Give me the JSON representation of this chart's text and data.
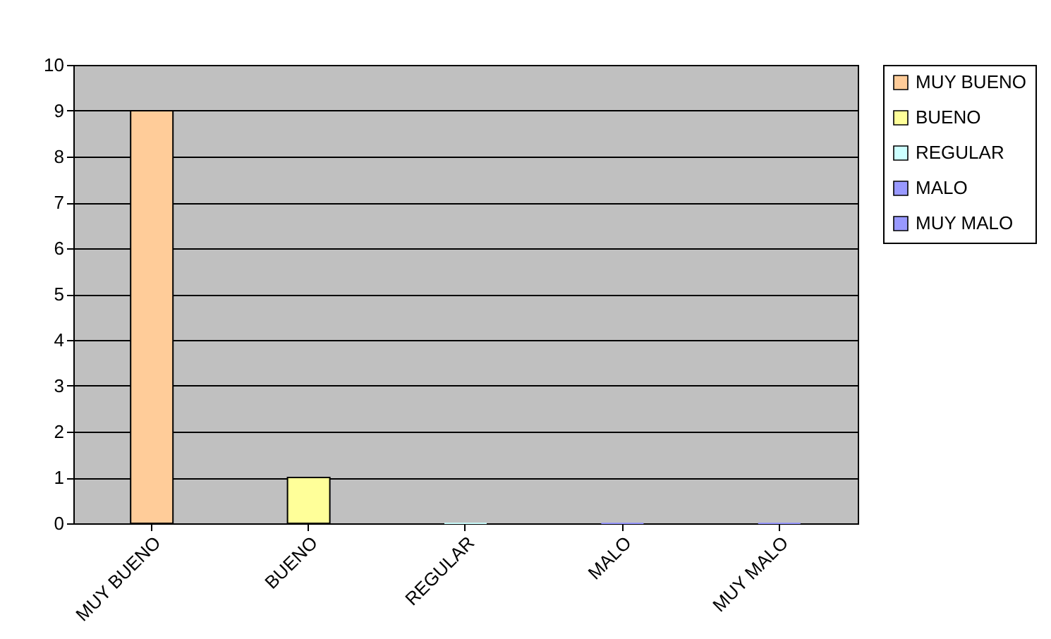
{
  "chart_data": {
    "type": "bar",
    "categories": [
      "MUY BUENO",
      "BUENO",
      "REGULAR",
      "MALO",
      "MUY MALO"
    ],
    "series": [
      {
        "name": "MUY BUENO",
        "color": "#ffcc99",
        "values": [
          9,
          null,
          null,
          null,
          null
        ]
      },
      {
        "name": "BUENO",
        "color": "#ffff99",
        "values": [
          null,
          1,
          null,
          null,
          null
        ]
      },
      {
        "name": "REGULAR",
        "color": "#ccffff",
        "values": [
          null,
          null,
          0,
          null,
          null
        ]
      },
      {
        "name": "MALO",
        "color": "#9999ff",
        "values": [
          null,
          null,
          null,
          0,
          null
        ]
      },
      {
        "name": "MUY MALO",
        "color": "#9999ff",
        "values": [
          null,
          null,
          null,
          null,
          0
        ]
      }
    ],
    "ylim": [
      0,
      10
    ],
    "yticks": [
      0,
      1,
      2,
      3,
      4,
      5,
      6,
      7,
      8,
      9,
      10
    ],
    "grid": "y",
    "legend": "right"
  }
}
